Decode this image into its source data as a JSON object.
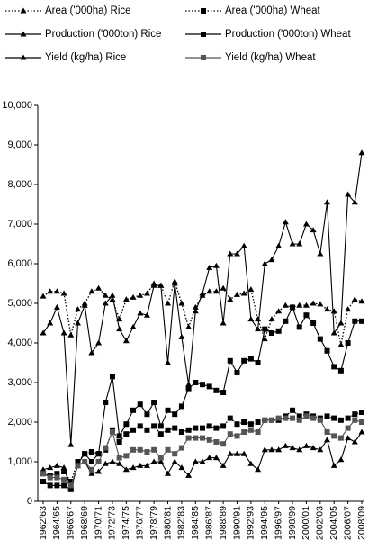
{
  "chart_data": {
    "type": "line",
    "categories": [
      "1962/63",
      null,
      "1964/65",
      null,
      "1966/67",
      null,
      "1968/69",
      null,
      "1970/71",
      null,
      "1972/73",
      null,
      "1974/75",
      null,
      "1976/77",
      null,
      "1978/79",
      null,
      "1980/81",
      null,
      "1982/83",
      null,
      "1984/85",
      null,
      "1986/87",
      null,
      "1988/89",
      null,
      "1990/91",
      null,
      "1992/93",
      null,
      "1994/95",
      null,
      "1996/97",
      null,
      "1998/99",
      null,
      "2000/01",
      null,
      "2002/03",
      null,
      "2004/05",
      null,
      "2006/07",
      null,
      "2008/09"
    ],
    "ylim": [
      0,
      10000
    ],
    "yticks": [
      0,
      {
        "value": 1000,
        "label": "1,000"
      },
      {
        "value": 2000,
        "label": "2,000"
      },
      {
        "value": 3000,
        "label": "3,000"
      },
      {
        "value": 4000,
        "label": "4,000"
      },
      {
        "value": 5000,
        "label": "5,000"
      },
      {
        "value": 6000,
        "label": "6,000"
      },
      {
        "value": 7000,
        "label": "7,000"
      },
      {
        "value": 8000,
        "label": "8,000"
      },
      {
        "value": 9000,
        "label": "9,000"
      },
      {
        "value": 10000,
        "label": "10,000"
      }
    ],
    "grid": false,
    "series": [
      {
        "name": "Area ('000ha) Rice",
        "color": "#000000",
        "dash": "dotted",
        "marker": "triangle",
        "values": [
          5180,
          5300,
          5300,
          5250,
          4200,
          4850,
          5000,
          5300,
          5380,
          5200,
          5100,
          4600,
          5100,
          5150,
          5200,
          5250,
          5500,
          5450,
          5000,
          5550,
          5000,
          4400,
          4900,
          5200,
          5300,
          5300,
          5380,
          5100,
          5220,
          5250,
          5350,
          4600,
          4100,
          4600,
          4800,
          4950,
          4900,
          4950,
          4950,
          5000,
          4980,
          4850,
          4800,
          3950,
          4850,
          5100,
          5050
        ]
      },
      {
        "name": "Area ('000ha) Wheat",
        "color": "#000000",
        "dash": "dotted",
        "marker": "square",
        "values": [
          700,
          650,
          700,
          750,
          500,
          1000,
          1200,
          1250,
          1200,
          1300,
          1800,
          1500,
          1700,
          1800,
          1900,
          1800,
          1900,
          1700,
          1800,
          1850,
          1750,
          1800,
          1850,
          1850,
          1900,
          1850,
          1900,
          2100,
          1950,
          2000,
          1950,
          2000,
          2050,
          2050,
          2050,
          2150,
          2300,
          2150,
          2200,
          2150,
          2100,
          2150,
          2100,
          2050,
          2100,
          2200,
          2250
        ]
      },
      {
        "name": "Production ('000ton) Rice",
        "color": "#000000",
        "dash": "solid",
        "marker": "triangle",
        "values": [
          4250,
          4500,
          4900,
          4250,
          1430,
          4500,
          4950,
          3750,
          4000,
          5000,
          5200,
          4350,
          4050,
          4400,
          4750,
          4700,
          5450,
          5450,
          3500,
          5500,
          4150,
          2950,
          4800,
          5250,
          5900,
          5950,
          4500,
          6250,
          6250,
          6450,
          4600,
          4350,
          6000,
          6100,
          6450,
          7050,
          6500,
          6500,
          7000,
          6850,
          6250,
          7550,
          4250,
          4500,
          7750,
          7550,
          8800
        ]
      },
      {
        "name": "Production ('000ton) Wheat",
        "color": "#000000",
        "dash": "solid",
        "marker": "square",
        "values": [
          500,
          400,
          400,
          400,
          300,
          950,
          1200,
          1000,
          1200,
          2500,
          3150,
          1650,
          1950,
          2300,
          2450,
          2200,
          2500,
          1900,
          2300,
          2200,
          2400,
          2850,
          3000,
          2950,
          2900,
          2800,
          2750,
          3550,
          3250,
          3550,
          3600,
          3500,
          4350,
          4250,
          4300,
          4550,
          4900,
          4400,
          4700,
          4500,
          4100,
          3800,
          3400,
          3300,
          4000,
          4550,
          4550
        ]
      },
      {
        "name": "Yield (kg/ha) Rice",
        "color": "#000000",
        "dash": "solid",
        "marker": "triangle",
        "values": [
          800,
          850,
          900,
          850,
          350,
          900,
          1000,
          700,
          750,
          950,
          1000,
          950,
          800,
          850,
          900,
          900,
          1000,
          1000,
          700,
          1000,
          850,
          650,
          1000,
          1000,
          1100,
          1100,
          900,
          1200,
          1200,
          1200,
          950,
          800,
          1300,
          1300,
          1300,
          1400,
          1350,
          1300,
          1400,
          1350,
          1300,
          1550,
          900,
          1050,
          1600,
          1500,
          1750
        ]
      },
      {
        "name": "Yield (kg/ha) Wheat",
        "color": "#555555",
        "dash": "solid",
        "marker": "square",
        "values": [
          700,
          600,
          600,
          550,
          400,
          900,
          1000,
          800,
          1000,
          1350,
          1750,
          1100,
          1150,
          1300,
          1300,
          1250,
          1300,
          1100,
          1300,
          1200,
          1350,
          1600,
          1600,
          1600,
          1550,
          1500,
          1450,
          1700,
          1650,
          1750,
          1800,
          1750,
          2050,
          2050,
          2100,
          2100,
          2100,
          2050,
          2150,
          2100,
          2050,
          1750,
          1650,
          1600,
          1850,
          2050,
          2000
        ]
      }
    ]
  }
}
